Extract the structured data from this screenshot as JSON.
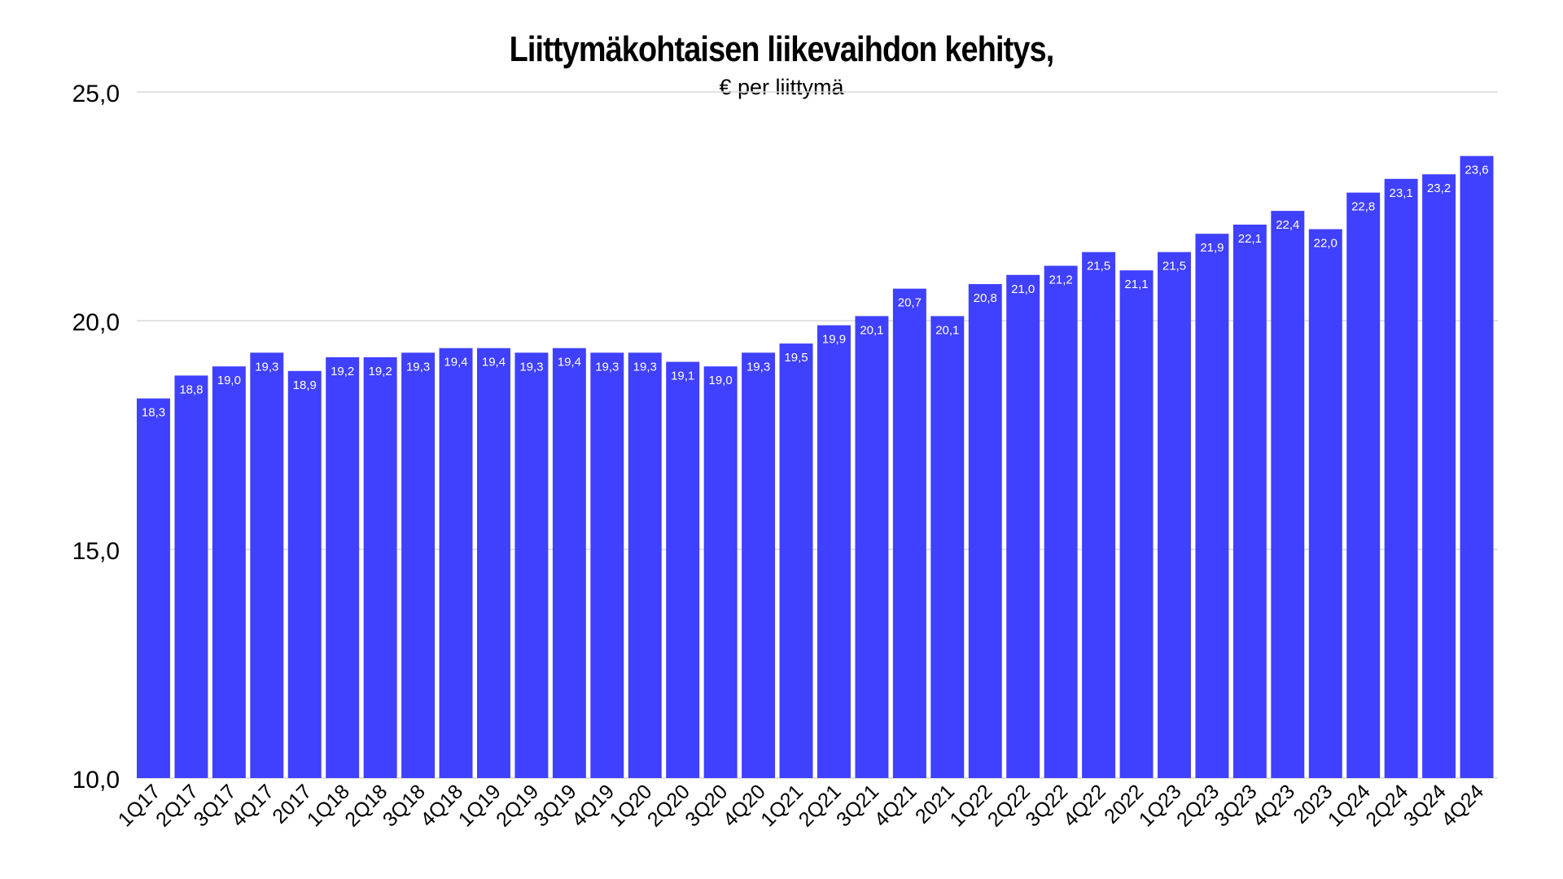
{
  "chart_data": {
    "type": "bar",
    "title": "Liittymäkohtaisen liikevaihdon kehitys,",
    "subtitle": "€ per liittymä",
    "xlabel": "",
    "ylabel": "",
    "ylim": [
      10,
      25
    ],
    "yticks": [
      10,
      15,
      20,
      25
    ],
    "ytick_labels": [
      "10,0",
      "15,0",
      "20,0",
      "25,0"
    ],
    "grid": true,
    "legend": "none",
    "bar_color": "#4040ff",
    "grid_color": "#d9d9d9",
    "label_color": "#ffffff",
    "categories": [
      "1Q17",
      "2Q17",
      "3Q17",
      "4Q17",
      "2017",
      "1Q18",
      "2Q18",
      "3Q18",
      "4Q18",
      "1Q19",
      "2Q19",
      "3Q19",
      "4Q19",
      "1Q20",
      "2Q20",
      "3Q20",
      "4Q20",
      "1Q21",
      "2Q21",
      "3Q21",
      "4Q21",
      "2021",
      "1Q22",
      "2Q22",
      "3Q22",
      "4Q22",
      "2022",
      "1Q23",
      "2Q23",
      "3Q23",
      "4Q23",
      "2023",
      "1Q24",
      "2Q24",
      "3Q24",
      "4Q24"
    ],
    "values": [
      18.3,
      18.8,
      19.0,
      19.3,
      18.9,
      19.2,
      19.2,
      19.3,
      19.4,
      19.4,
      19.3,
      19.4,
      19.3,
      19.3,
      19.1,
      19.0,
      19.3,
      19.5,
      19.9,
      20.1,
      20.7,
      20.1,
      20.8,
      21.0,
      21.2,
      21.5,
      21.1,
      21.5,
      21.9,
      22.1,
      22.4,
      22.0,
      22.8,
      23.1,
      23.2,
      23.6
    ],
    "value_labels": [
      "18,3",
      "18,8",
      "19,0",
      "19,3",
      "18,9",
      "19,2",
      "19,2",
      "19,3",
      "19,4",
      "19,4",
      "19,3",
      "19,4",
      "19,3",
      "19,3",
      "19,1",
      "19,0",
      "19,3",
      "19,5",
      "19,9",
      "20,1",
      "20,7",
      "20,1",
      "20,8",
      "21,0",
      "21,2",
      "21,5",
      "21,1",
      "21,5",
      "21,9",
      "22,1",
      "22,4",
      "22,0",
      "22,8",
      "23,1",
      "23,2",
      "23,6"
    ]
  }
}
